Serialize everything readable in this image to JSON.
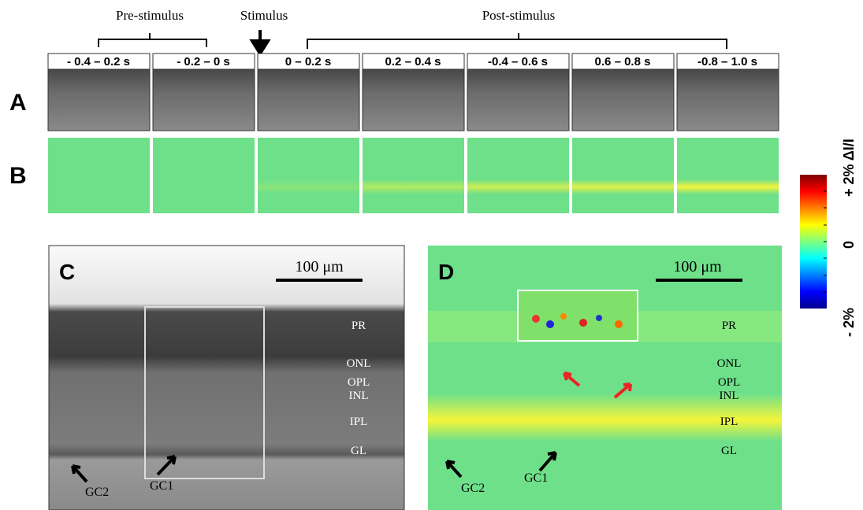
{
  "phases": {
    "pre": "Pre-stimulus",
    "stimulus": "Stimulus",
    "post": "Post-stimulus"
  },
  "frames": [
    "- 0.4 – 0.2 s",
    "- 0.2 – 0 s",
    "0 – 0.2 s",
    "0.2 – 0.4 s",
    "-0.4 – 0.6 s",
    "0.6 – 0.8 s",
    "-0.8 – 1.0 s"
  ],
  "row_labels": [
    "A",
    "B"
  ],
  "colorbar": {
    "max_label": "+ 2% ΔI/I",
    "mid_label": "0",
    "min_label": "- 2%"
  },
  "panel_c": {
    "label": "C",
    "scale": "100 μm",
    "layers": [
      "PR",
      "ONL",
      "OPL",
      "INL",
      "IPL",
      "GL"
    ],
    "cells": [
      "GC2",
      "GC1"
    ]
  },
  "panel_d": {
    "label": "D",
    "scale": "100 μm",
    "layers": [
      "PR",
      "ONL",
      "OPL",
      "INL",
      "IPL",
      "GL"
    ],
    "cells": [
      "GC2",
      "GC1"
    ]
  }
}
